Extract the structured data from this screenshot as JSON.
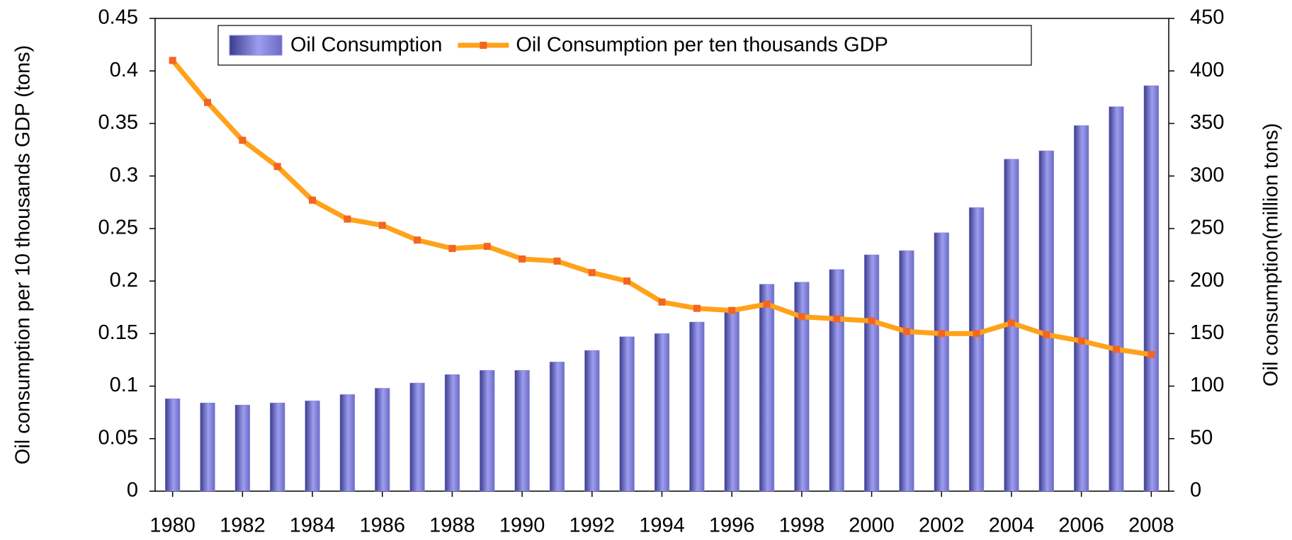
{
  "chart_data": {
    "type": "bar",
    "x": [
      1980,
      1981,
      1982,
      1983,
      1984,
      1985,
      1986,
      1987,
      1988,
      1989,
      1990,
      1991,
      1992,
      1993,
      1994,
      1995,
      1996,
      1997,
      1998,
      1999,
      2000,
      2001,
      2002,
      2003,
      2004,
      2005,
      2006,
      2007,
      2008
    ],
    "xlim": [
      1979.5,
      2008.5
    ],
    "xticks": [
      1980,
      1982,
      1984,
      1986,
      1988,
      1990,
      1992,
      1994,
      1996,
      1998,
      2000,
      2002,
      2004,
      2006,
      2008
    ],
    "ylim": [
      0,
      0.45
    ],
    "yticks": [
      0,
      0.05,
      0.1,
      0.15,
      0.2,
      0.25,
      0.3,
      0.35,
      0.4,
      0.45
    ],
    "y2lim": [
      0,
      450
    ],
    "y2ticks": [
      0,
      50,
      100,
      150,
      200,
      250,
      300,
      350,
      400,
      450
    ],
    "ylabel": "Oil consumption per 10 thousands GDP (tons)",
    "y2label": "Oil consumption(million tons)",
    "legend": "top",
    "grid": false,
    "series": [
      {
        "name": "Oil Consumption",
        "type": "bar",
        "axis": "y2",
        "color": "#8a8ae6",
        "values": [
          88,
          84,
          82,
          84,
          86,
          92,
          98,
          103,
          111,
          115,
          115,
          123,
          134,
          147,
          150,
          161,
          174,
          197,
          199,
          211,
          225,
          229,
          246,
          270,
          316,
          324,
          348,
          366,
          386
        ]
      },
      {
        "name": "Oil Consumption per ten thousands GDP",
        "type": "line",
        "color": "#ffa21a",
        "marker_color": "#f26522",
        "values": [
          0.41,
          0.37,
          0.334,
          0.309,
          0.277,
          0.259,
          0.253,
          0.239,
          0.231,
          0.233,
          0.221,
          0.219,
          0.208,
          0.2,
          0.18,
          0.174,
          0.172,
          0.178,
          0.166,
          0.164,
          0.162,
          0.152,
          0.15,
          0.15,
          0.16,
          0.149,
          0.143,
          0.135,
          0.13
        ]
      }
    ]
  }
}
